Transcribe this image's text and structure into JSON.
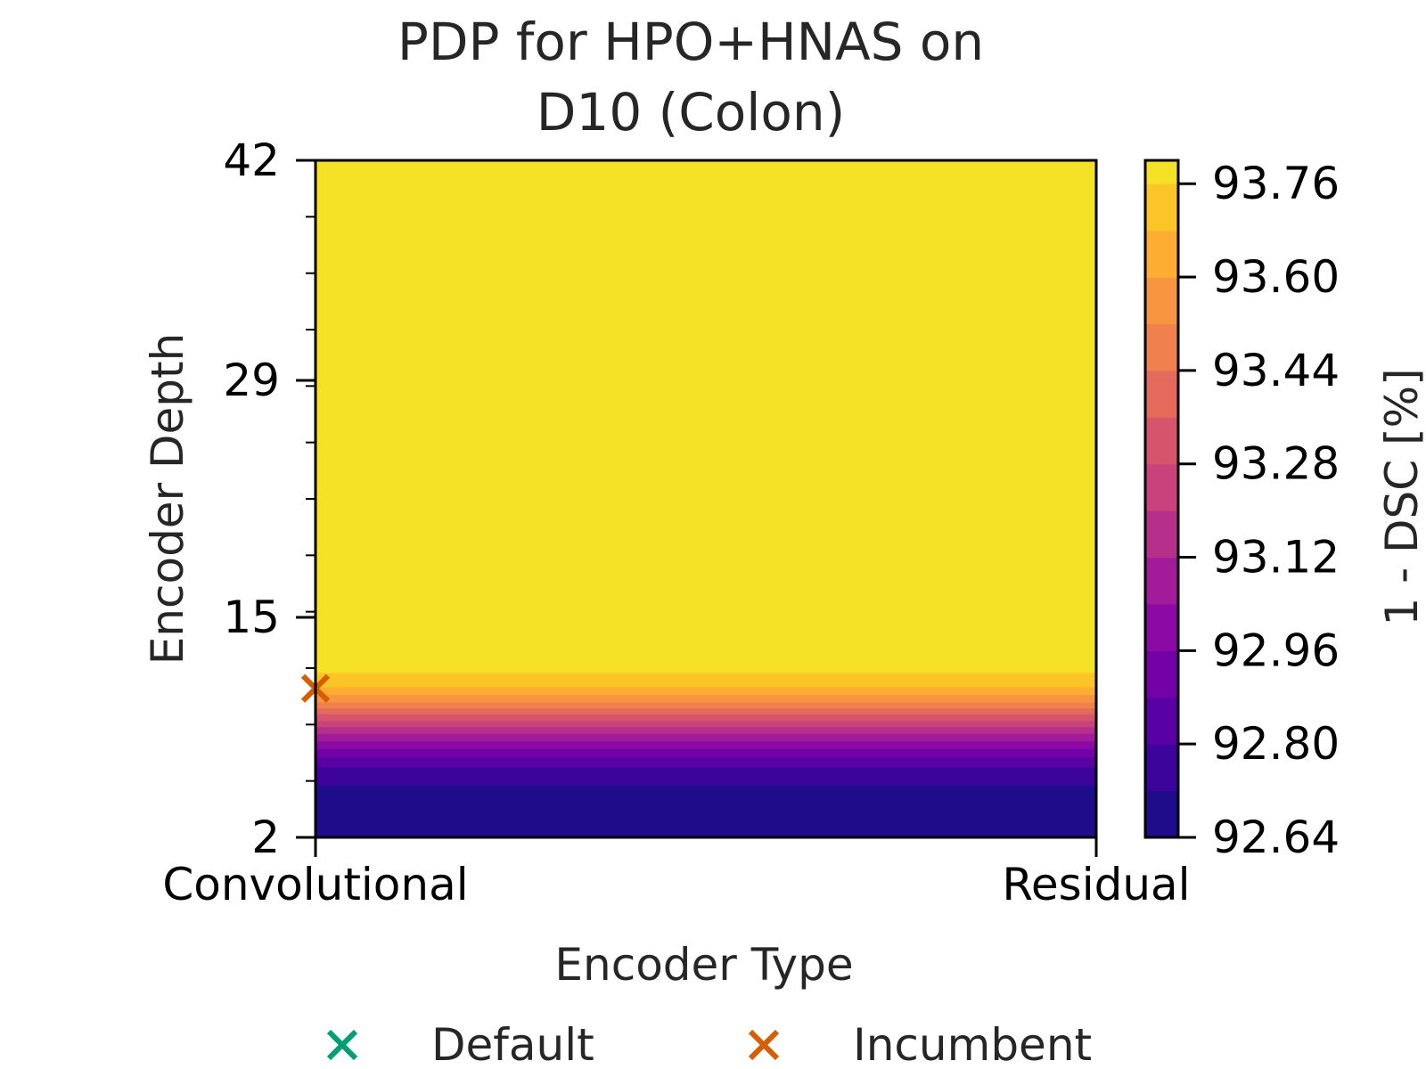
{
  "chart_data": {
    "type": "heatmap",
    "title": [
      "PDP for HPO+HNAS on",
      "D10 (Colon)"
    ],
    "xlabel": "Encoder Type",
    "ylabel": "Encoder Depth",
    "x_categories": [
      "Convolutional",
      "Residual"
    ],
    "yticks": [
      2,
      15,
      29,
      42
    ],
    "ylim": [
      2,
      42
    ],
    "colorbar": {
      "label": "1 - DSC [%]",
      "ticks": [
        "92.64",
        "92.80",
        "92.96",
        "93.12",
        "93.28",
        "93.44",
        "93.60",
        "93.76"
      ],
      "range": [
        92.64,
        93.8
      ],
      "levels": [
        92.64,
        92.72,
        92.8,
        92.88,
        92.96,
        93.04,
        93.12,
        93.2,
        93.28,
        93.36,
        93.44,
        93.52,
        93.6,
        93.68,
        93.76,
        93.8
      ],
      "colormap": "plasma",
      "level_colors": [
        "#1f0c8b",
        "#3d049b",
        "#5801a4",
        "#7201a8",
        "#8b0aa5",
        "#a11b9b",
        "#b6308b",
        "#c8437b",
        "#d6556d",
        "#e46a5c",
        "#f0804e",
        "#f89540",
        "#fdad32",
        "#fcc527",
        "#f5e125"
      ]
    },
    "depth_profile": [
      {
        "depth": 2.0,
        "value": 92.65
      },
      {
        "depth": 4.0,
        "value": 92.65
      },
      {
        "depth": 6.0,
        "value": 92.78
      },
      {
        "depth": 7.0,
        "value": 92.92
      },
      {
        "depth": 8.0,
        "value": 93.1
      },
      {
        "depth": 9.0,
        "value": 93.3
      },
      {
        "depth": 10.0,
        "value": 93.52
      },
      {
        "depth": 11.0,
        "value": 93.7
      },
      {
        "depth": 12.0,
        "value": 93.78
      },
      {
        "depth": 42.0,
        "value": 93.78
      }
    ],
    "markers": [
      {
        "name": "Incumbent",
        "x": "Convolutional",
        "y": 10.8,
        "color": "#d55e00"
      }
    ],
    "legend": [
      {
        "label": "Default",
        "color": "#009e73"
      },
      {
        "label": "Incumbent",
        "color": "#d55e00"
      }
    ]
  }
}
